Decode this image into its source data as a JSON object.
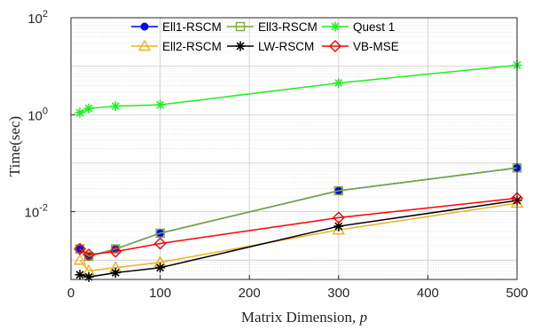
{
  "chart_data": {
    "type": "line",
    "xlabel_text": "Matrix Dimension, ",
    "xlabel_var": "p",
    "ylabel": "Time(sec)",
    "xlim": [
      0,
      500
    ],
    "ylim": [
      0.0004,
      100
    ],
    "yscale": "log",
    "grid": true,
    "legend_position": "top",
    "x_ticks": [
      0,
      100,
      200,
      300,
      400,
      500
    ],
    "y_ticks": [
      {
        "value": 0.01,
        "base": "10",
        "exp": "-2"
      },
      {
        "value": 1,
        "base": "10",
        "exp": "0"
      },
      {
        "value": 100,
        "base": "10",
        "exp": "2"
      }
    ],
    "series": [
      {
        "name": "Ell1-RSCM",
        "color": "#0000ff",
        "marker": "circle",
        "x": [
          10,
          20,
          50,
          100,
          300,
          500
        ],
        "y": [
          0.0017,
          0.0012,
          0.0017,
          0.0036,
          0.027,
          0.08
        ]
      },
      {
        "name": "Ell3-RSCM",
        "color": "#77ac30",
        "marker": "square",
        "x": [
          10,
          20,
          50,
          100,
          300,
          500
        ],
        "y": [
          0.0017,
          0.0012,
          0.0017,
          0.0036,
          0.027,
          0.08
        ]
      },
      {
        "name": "Quest 1",
        "color": "#22ee22",
        "marker": "asterisk",
        "x": [
          10,
          20,
          50,
          100,
          300,
          500
        ],
        "y": [
          1.1,
          1.35,
          1.5,
          1.6,
          4.5,
          10.5
        ]
      },
      {
        "name": "Ell2-RSCM",
        "color": "#edb120",
        "marker": "triangle",
        "x": [
          10,
          20,
          50,
          100,
          300,
          500
        ],
        "y": [
          0.001,
          0.0006,
          0.0007,
          0.0009,
          0.0042,
          0.015
        ]
      },
      {
        "name": "LW-RSCM",
        "color": "#000000",
        "marker": "asterisk",
        "x": [
          10,
          20,
          50,
          100,
          300,
          500
        ],
        "y": [
          0.0005,
          0.00045,
          0.00055,
          0.0007,
          0.005,
          0.017
        ]
      },
      {
        "name": "VB-MSE",
        "color": "#ff0000",
        "marker": "diamond",
        "x": [
          10,
          20,
          50,
          100,
          300,
          500
        ],
        "y": [
          0.0017,
          0.0013,
          0.0015,
          0.0022,
          0.0075,
          0.019
        ]
      }
    ]
  }
}
